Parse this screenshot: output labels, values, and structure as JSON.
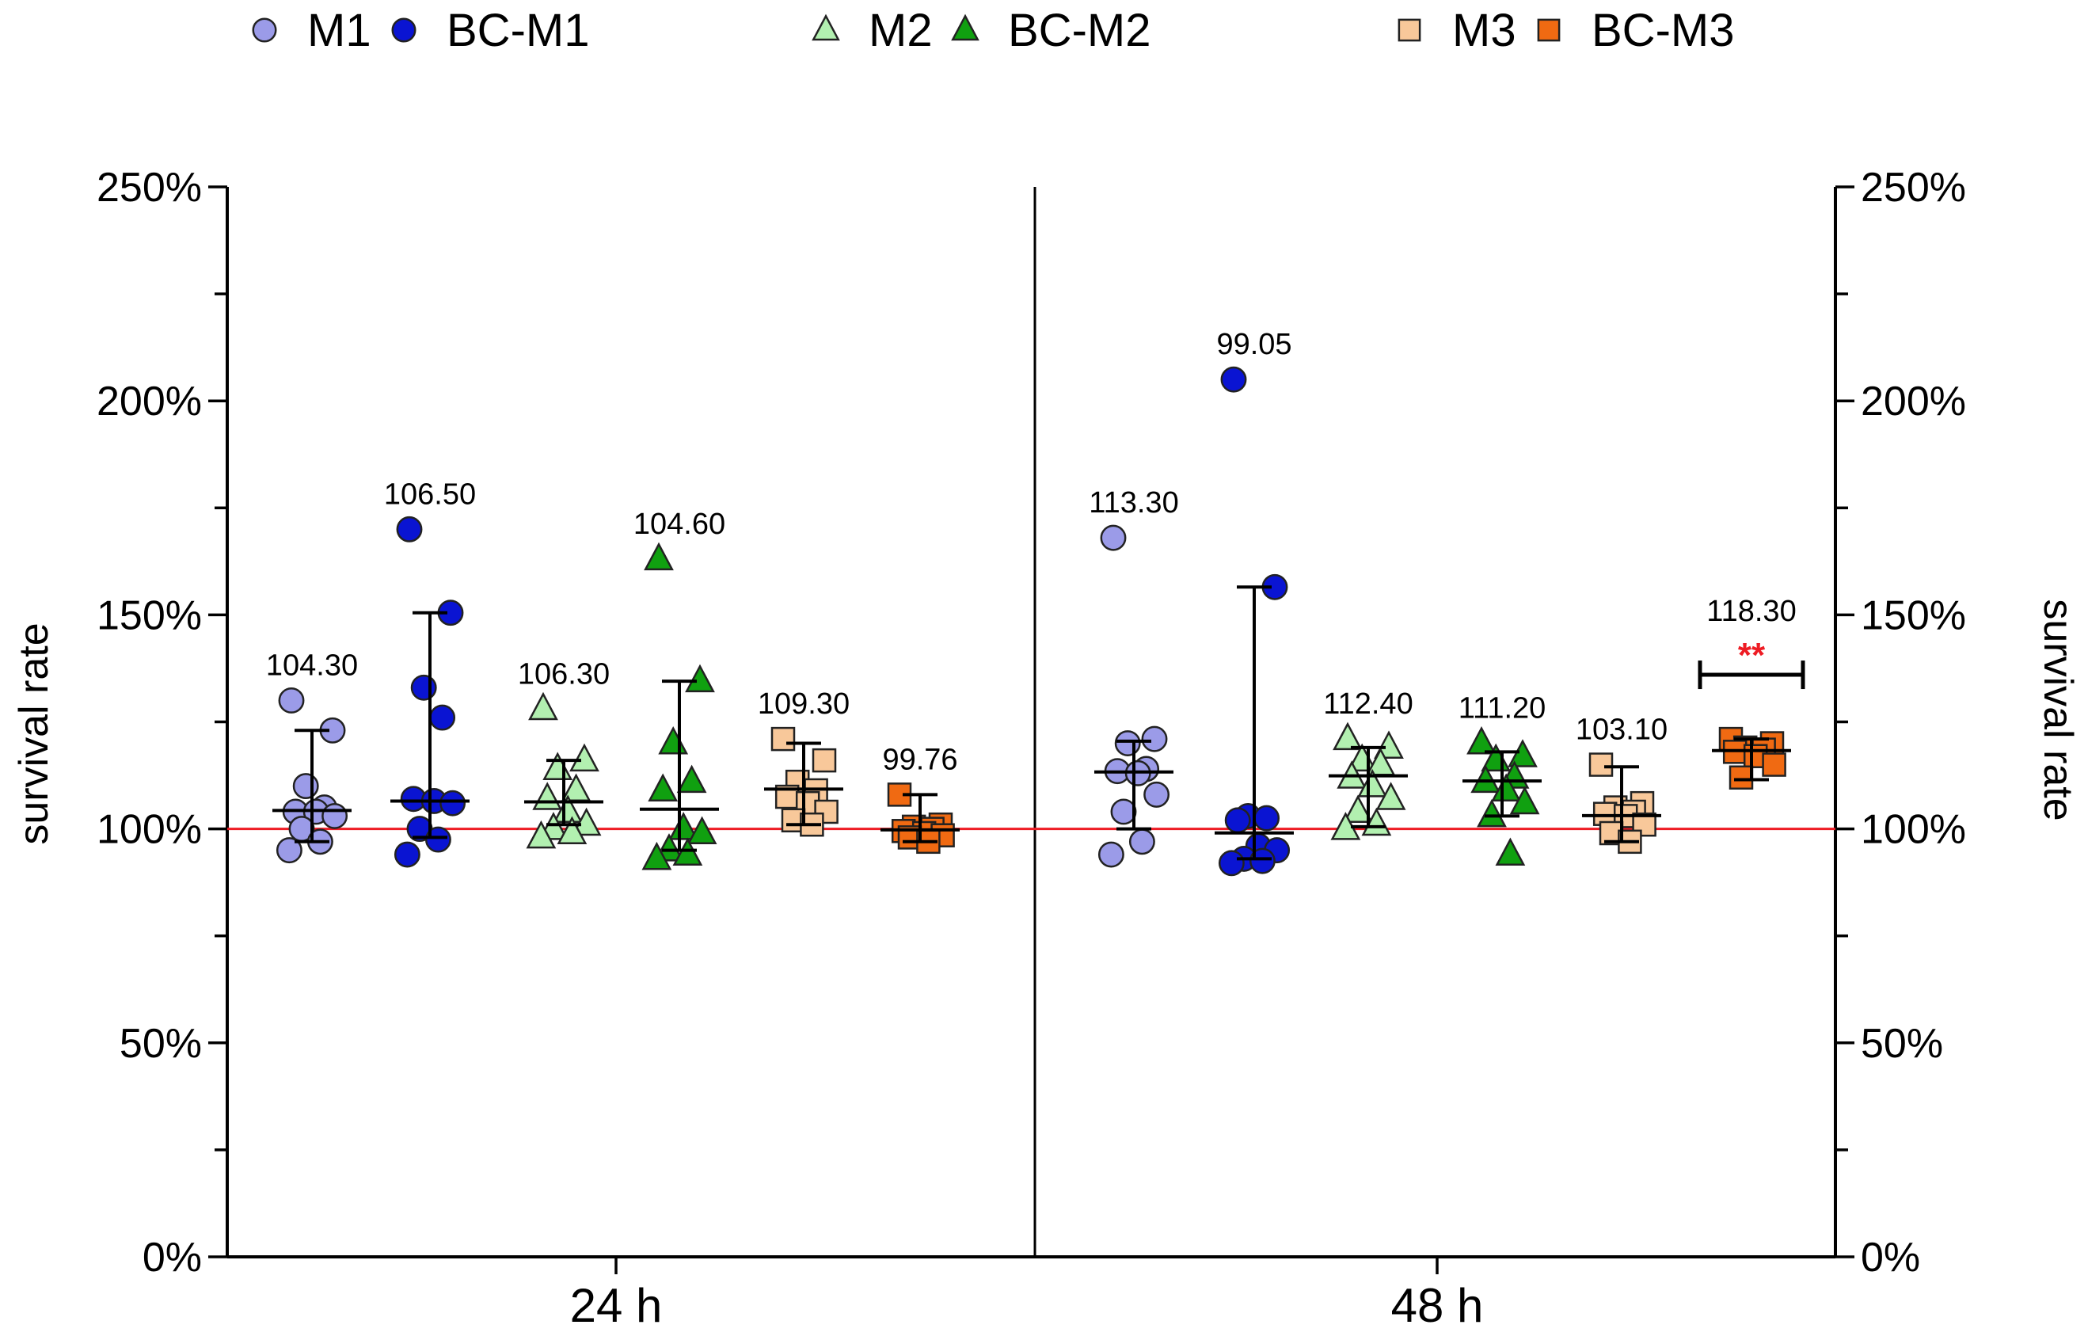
{
  "chart_data": {
    "type": "scatter",
    "title": "",
    "ylabel_left": "survival rate",
    "ylabel_right": "survival rate",
    "ylim": [
      0,
      250
    ],
    "yticks": [
      0,
      50,
      100,
      150,
      200,
      250
    ],
    "ytick_labels": [
      "0%",
      "50%",
      "100%",
      "150%",
      "200%",
      "250%"
    ],
    "reference_line": 100,
    "reference_color": "#ee1c24",
    "panels": [
      {
        "label": "24 h"
      },
      {
        "label": "48 h"
      }
    ],
    "legend": [
      {
        "key": "M1",
        "label": "M1",
        "marker": "circle",
        "color": "#9b9be8"
      },
      {
        "key": "BC-M1",
        "label": "BC-M1",
        "marker": "circle",
        "color": "#0a14d2"
      },
      {
        "key": "M2",
        "label": "M2",
        "marker": "triangle",
        "color": "#b2f0b0"
      },
      {
        "key": "BC-M2",
        "label": "BC-M2",
        "marker": "triangle",
        "color": "#10a010"
      },
      {
        "key": "M3",
        "label": "M3",
        "marker": "square",
        "color": "#f8c89a"
      },
      {
        "key": "BC-M3",
        "label": "BC-M3",
        "marker": "square",
        "color": "#f06a12"
      }
    ],
    "groups": [
      {
        "panel": 0,
        "series": "M1",
        "median": 104.3,
        "median_label": "104.30",
        "q1": 97,
        "q3": 123,
        "values": [
          130,
          123,
          110,
          105,
          104,
          104,
          103,
          100,
          97,
          95
        ]
      },
      {
        "panel": 0,
        "series": "BC-M1",
        "median": 106.5,
        "median_label": "106.50",
        "q1": 98,
        "q3": 150.5,
        "values": [
          170,
          150.5,
          133,
          126,
          107,
          106.5,
          106,
          100,
          97.5,
          94
        ]
      },
      {
        "panel": 0,
        "series": "M2",
        "median": 106.3,
        "median_label": "106.30",
        "q1": 101,
        "q3": 116,
        "values": [
          128,
          116,
          114,
          109,
          107,
          104,
          101,
          100,
          99,
          98
        ]
      },
      {
        "panel": 0,
        "series": "BC-M2",
        "median": 104.6,
        "median_label": "104.60",
        "q1": 95,
        "q3": 134.5,
        "values": [
          163,
          134.5,
          120,
          111,
          109,
          100,
          99,
          95,
          94,
          93
        ]
      },
      {
        "panel": 0,
        "series": "M3",
        "median": 109.3,
        "median_label": "109.30",
        "q1": 101,
        "q3": 120,
        "values": [
          121,
          116,
          111,
          109,
          107.5,
          106,
          104,
          102,
          101
        ]
      },
      {
        "panel": 0,
        "series": "BC-M3",
        "median": 99.76,
        "median_label": "99.76",
        "q1": 97,
        "q3": 108,
        "values": [
          108,
          101,
          100.5,
          100,
          99.5,
          99,
          98.5,
          98,
          97
        ]
      },
      {
        "panel": 1,
        "series": "M1",
        "median": 113.3,
        "median_label": "113.30",
        "q1": 100,
        "q3": 120.5,
        "values": [
          168,
          121,
          120,
          114,
          113.5,
          113,
          108,
          104,
          97,
          94
        ]
      },
      {
        "panel": 1,
        "series": "BC-M1",
        "median": 99.05,
        "median_label": "99.05",
        "q1": 93,
        "q3": 156.5,
        "values": [
          205,
          156.5,
          103,
          102.5,
          102,
          96,
          95,
          93,
          92.5,
          92
        ]
      },
      {
        "panel": 1,
        "series": "M2",
        "median": 112.4,
        "median_label": "112.40",
        "q1": 100.5,
        "q3": 119,
        "values": [
          121,
          119,
          116,
          115,
          112,
          110,
          107,
          104,
          101,
          100
        ]
      },
      {
        "panel": 1,
        "series": "BC-M2",
        "median": 111.2,
        "median_label": "111.20",
        "q1": 103,
        "q3": 118,
        "values": [
          120,
          117,
          116,
          112,
          111,
          109,
          106,
          103,
          94
        ]
      },
      {
        "panel": 1,
        "series": "M3",
        "median": 103.1,
        "median_label": "103.10",
        "q1": 97,
        "q3": 114.5,
        "values": [
          115,
          106,
          105,
          104,
          103.5,
          103,
          101,
          99,
          97
        ]
      },
      {
        "panel": 1,
        "series": "BC-M3",
        "median": 118.3,
        "median_label": "118.30",
        "q1": 111.5,
        "q3": 121,
        "values": [
          121,
          120,
          119,
          118.5,
          118,
          117,
          115,
          112
        ]
      }
    ],
    "significance": {
      "panel": 1,
      "group_index": 5,
      "y": 136,
      "label": "**",
      "color": "#ee1c24"
    }
  }
}
